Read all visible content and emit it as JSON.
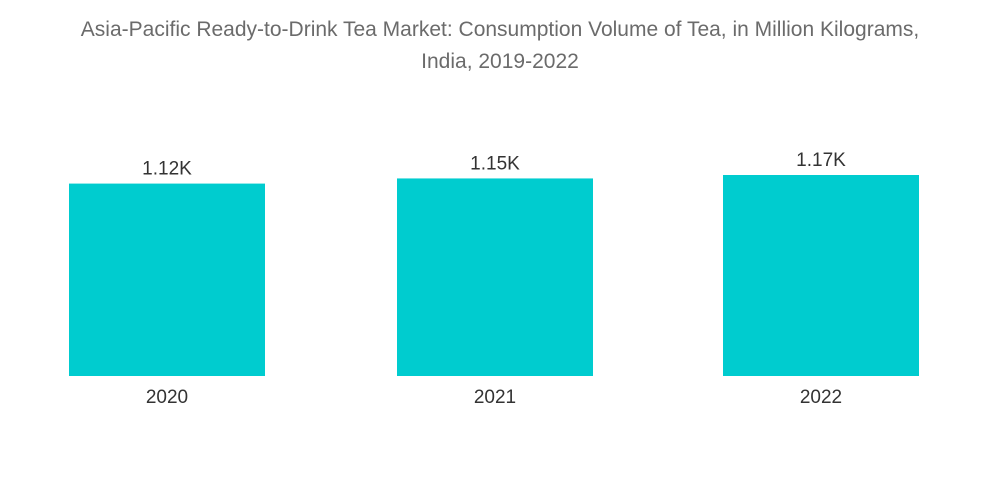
{
  "chart_data": {
    "type": "bar",
    "title_line1": "Asia-Pacific Ready-to-Drink Tea Market: Consumption Volume of Tea, in Million Kilograms,",
    "title_line2": "India, 2019-2022",
    "categories": [
      "2020",
      "2021",
      "2022"
    ],
    "values": [
      1120,
      1150,
      1170
    ],
    "value_labels": [
      "1.12K",
      "1.15K",
      "1.17K"
    ],
    "xlabel": "",
    "ylabel": "",
    "ylim": [
      0,
      1170
    ],
    "grid": false,
    "legend": "none",
    "bar_color": "#00cccf",
    "label_color": "#333333",
    "title_color": "#6b6b6b"
  }
}
